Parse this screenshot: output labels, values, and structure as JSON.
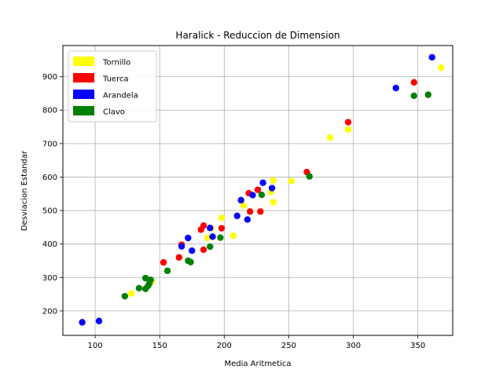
{
  "chart_data": {
    "type": "scatter",
    "title": "Haralick - Reduccion de Dimension",
    "xlabel": "Media Aritmetica",
    "ylabel": "Desviacion Estandar",
    "xlim": [
      75,
      377
    ],
    "ylim": [
      127,
      993
    ],
    "xticks": [
      100,
      150,
      200,
      250,
      300,
      350
    ],
    "yticks": [
      200,
      300,
      400,
      500,
      600,
      700,
      800,
      900
    ],
    "grid": true,
    "legend_position": "top-left",
    "series": [
      {
        "name": "Tornillo",
        "color": "#ffff00",
        "points": [
          [
            128,
            252
          ],
          [
            144,
            288
          ],
          [
            187,
            418
          ],
          [
            190,
            447
          ],
          [
            198,
            478
          ],
          [
            207,
            425
          ],
          [
            215,
            515
          ],
          [
            236,
            555
          ],
          [
            238,
            525
          ],
          [
            238,
            590
          ],
          [
            252,
            588
          ],
          [
            282,
            718
          ],
          [
            296,
            742
          ],
          [
            368,
            927
          ]
        ]
      },
      {
        "name": "Tuerca",
        "color": "#ff0000",
        "points": [
          [
            153,
            345
          ],
          [
            165,
            360
          ],
          [
            167,
            398
          ],
          [
            182,
            443
          ],
          [
            184,
            455
          ],
          [
            184,
            383
          ],
          [
            198,
            447
          ],
          [
            219,
            552
          ],
          [
            220,
            497
          ],
          [
            226,
            562
          ],
          [
            228,
            497
          ],
          [
            264,
            615
          ],
          [
            296,
            764
          ],
          [
            347,
            883
          ]
        ]
      },
      {
        "name": "Arandela",
        "color": "#0000ff",
        "points": [
          [
            90,
            166
          ],
          [
            103,
            170
          ],
          [
            167,
            393
          ],
          [
            172,
            418
          ],
          [
            175,
            380
          ],
          [
            189,
            448
          ],
          [
            191,
            422
          ],
          [
            210,
            484
          ],
          [
            213,
            531
          ],
          [
            218,
            473
          ],
          [
            222,
            546
          ],
          [
            230,
            583
          ],
          [
            237,
            567
          ],
          [
            333,
            866
          ],
          [
            361,
            958
          ]
        ]
      },
      {
        "name": "Clavo",
        "color": "#008000",
        "points": [
          [
            123,
            244
          ],
          [
            134,
            268
          ],
          [
            139,
            266
          ],
          [
            139,
            298
          ],
          [
            141,
            275
          ],
          [
            142,
            282
          ],
          [
            143,
            293
          ],
          [
            156,
            320
          ],
          [
            172,
            350
          ],
          [
            174,
            346
          ],
          [
            189,
            392
          ],
          [
            197,
            419
          ],
          [
            229,
            547
          ],
          [
            266,
            602
          ],
          [
            347,
            843
          ],
          [
            358,
            846
          ]
        ]
      }
    ]
  }
}
